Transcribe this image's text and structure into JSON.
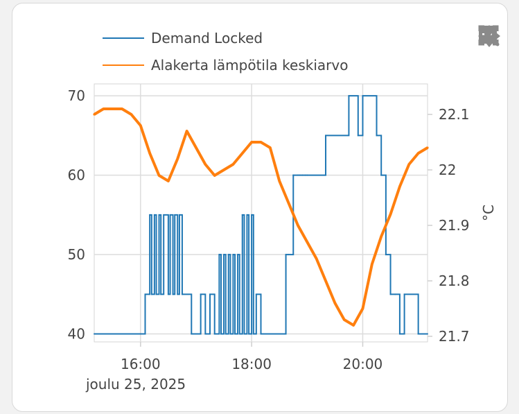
{
  "chart_data": {
    "type": "line",
    "x_start": "2025-12-25 15:10",
    "x_end": "2025-12-25 21:10",
    "x_ticks": [
      "16:00",
      "18:00",
      "20:00"
    ],
    "x_date_label": "joulu 25, 2025",
    "y_left": {
      "ticks": [
        "40",
        "50",
        "60",
        "70"
      ],
      "range": [
        39,
        71.5
      ]
    },
    "y_right": {
      "ticks": [
        "21.7",
        "21.8",
        "21.9",
        "22",
        "22.1"
      ],
      "range": [
        21.69,
        22.155
      ],
      "label": "°C"
    },
    "grid": true,
    "legend_position": "top-left",
    "series": [
      {
        "name": "Demand Locked",
        "color": "#1f77b4",
        "axis": "left",
        "x": [
          "15:10",
          "16:05",
          "16:10",
          "16:12",
          "16:15",
          "16:17",
          "16:20",
          "16:22",
          "16:25",
          "16:30",
          "16:32",
          "16:35",
          "16:37",
          "16:40",
          "16:42",
          "16:45",
          "16:55",
          "17:05",
          "17:10",
          "17:15",
          "17:20",
          "17:25",
          "17:27",
          "17:30",
          "17:32",
          "17:35",
          "17:37",
          "17:40",
          "17:42",
          "17:45",
          "17:47",
          "17:50",
          "17:52",
          "17:55",
          "17:57",
          "18:00",
          "18:02",
          "18:05",
          "18:10",
          "18:35",
          "18:37",
          "18:40",
          "18:45",
          "18:50",
          "18:52",
          "18:55",
          "18:58",
          "19:00",
          "19:20",
          "19:45",
          "19:55",
          "20:00",
          "20:15",
          "20:20",
          "20:25",
          "20:30",
          "20:35",
          "20:40",
          "20:45",
          "21:00",
          "21:10"
        ],
        "values": [
          40,
          45,
          55,
          45,
          55,
          45,
          55,
          45,
          55,
          45,
          55,
          45,
          55,
          45,
          55,
          45,
          40,
          45,
          40,
          45,
          40,
          50,
          40,
          50,
          40,
          50,
          40,
          50,
          40,
          50,
          40,
          55,
          40,
          55,
          40,
          55,
          40,
          45,
          40,
          40,
          50,
          50,
          60,
          60,
          60,
          60,
          60,
          60,
          65,
          70,
          65,
          70,
          65,
          60,
          50,
          45,
          45,
          40,
          45,
          40,
          40
        ]
      },
      {
        "name": "Alakerta lämpötila keskiarvo",
        "color": "#ff7f0e",
        "axis": "right",
        "x": [
          "15:10",
          "15:20",
          "15:30",
          "15:40",
          "15:50",
          "16:00",
          "16:10",
          "16:20",
          "16:30",
          "16:40",
          "16:50",
          "17:00",
          "17:10",
          "17:20",
          "17:30",
          "17:40",
          "17:50",
          "18:00",
          "18:10",
          "18:20",
          "18:30",
          "18:40",
          "18:50",
          "19:00",
          "19:10",
          "19:20",
          "19:30",
          "19:40",
          "19:50",
          "20:00",
          "20:10",
          "20:20",
          "20:30",
          "20:40",
          "20:50",
          "21:00",
          "21:10"
        ],
        "values": [
          22.1,
          22.11,
          22.11,
          22.11,
          22.1,
          22.08,
          22.03,
          21.99,
          21.98,
          22.02,
          22.07,
          22.04,
          22.01,
          21.99,
          22,
          22.01,
          22.03,
          22.05,
          22.05,
          22.04,
          21.98,
          21.94,
          21.9,
          21.87,
          21.84,
          21.8,
          21.76,
          21.73,
          21.72,
          21.75,
          21.83,
          21.88,
          21.92,
          21.97,
          22.01,
          22.03,
          22.04
        ]
      }
    ]
  }
}
